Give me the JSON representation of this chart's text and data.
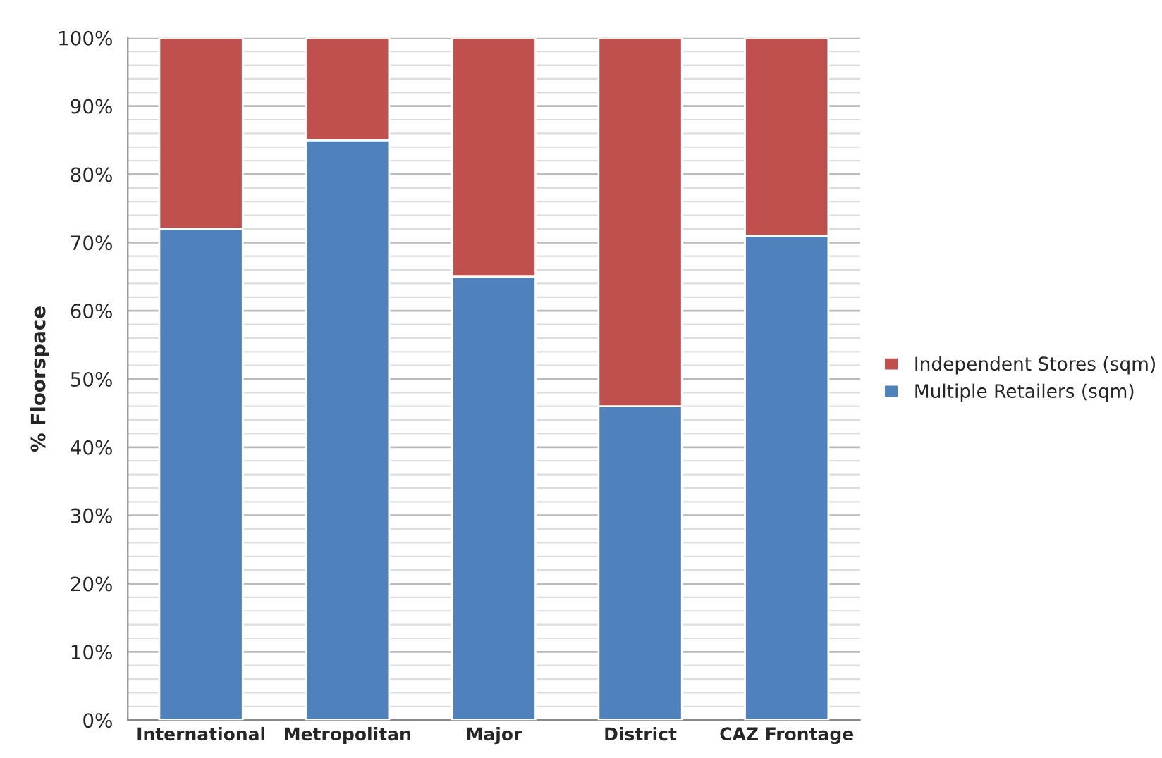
{
  "chart_data": {
    "type": "bar",
    "ylabel": "% Floorspace",
    "stacked": true,
    "categories": [
      "International",
      "Metropolitan",
      "Major",
      "District",
      "CAZ Frontage"
    ],
    "series": [
      {
        "name": "Multiple Retailers (sqm)",
        "color": "#4f81bd",
        "values": [
          72,
          85,
          65,
          46,
          71
        ]
      },
      {
        "name": "Independent Stores (sqm)",
        "color": "#c0504d",
        "values": [
          28,
          15,
          35,
          54,
          29
        ]
      }
    ],
    "ylim": [
      0,
      100
    ],
    "yticks": [
      {
        "value": 0,
        "label": "0%"
      },
      {
        "value": 10,
        "label": "10%"
      },
      {
        "value": 20,
        "label": "20%"
      },
      {
        "value": 30,
        "label": "30%"
      },
      {
        "value": 40,
        "label": "40%"
      },
      {
        "value": 50,
        "label": "50%"
      },
      {
        "value": 60,
        "label": "60%"
      },
      {
        "value": 70,
        "label": "70%"
      },
      {
        "value": 80,
        "label": "80%"
      },
      {
        "value": 90,
        "label": "90%"
      },
      {
        "value": 100,
        "label": "100%"
      }
    ],
    "grid": "y",
    "legend": "right"
  }
}
